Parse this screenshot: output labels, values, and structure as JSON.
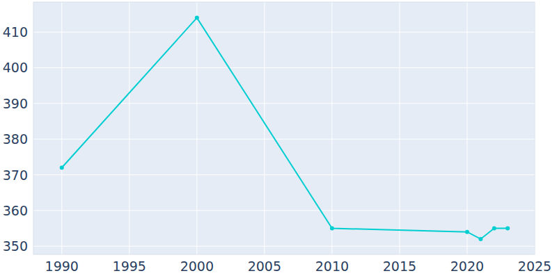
{
  "chart_data": {
    "type": "line",
    "x": [
      1990,
      2000,
      2010,
      2020,
      2021,
      2022,
      2023
    ],
    "values": [
      372,
      414,
      355,
      354,
      352,
      355,
      355
    ],
    "color": "#00ced1",
    "marker": "circle",
    "line_style": "solid",
    "xlim": [
      1987.9,
      2025
    ],
    "xticks": [
      1990,
      1995,
      2000,
      2005,
      2010,
      2015,
      2020,
      2025
    ],
    "ylim": [
      347.7,
      418.4
    ],
    "yticks": [
      350,
      360,
      370,
      380,
      390,
      400,
      410
    ],
    "grid": true
  }
}
